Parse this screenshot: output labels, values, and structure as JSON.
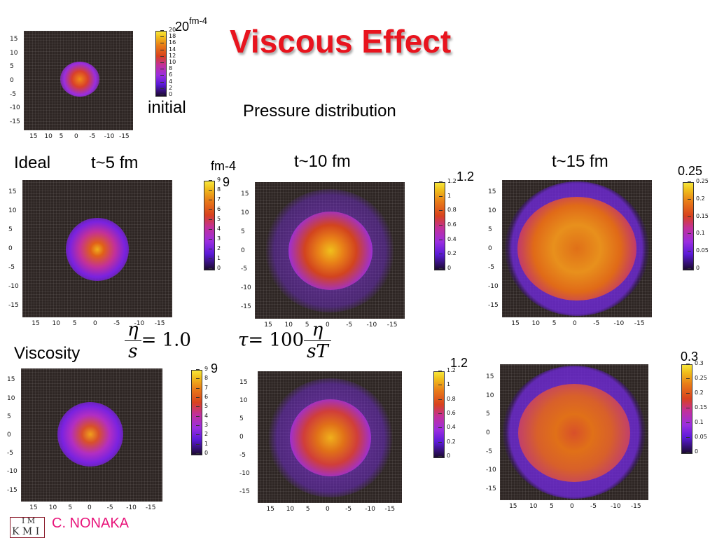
{
  "title": "Viscous Effect",
  "subtitle": "Pressure distribution",
  "labels": {
    "initial": "initial",
    "ideal": "Ideal",
    "viscosity": "Viscosity",
    "t5": "t~5 fm",
    "t10": "t~10 fm",
    "t15": "t~15 fm",
    "unit_initial_base": "20",
    "unit_initial_sup": "fm-4",
    "unit_ideal5": "fm-4",
    "max_ideal5": "9",
    "max_ideal10": "1.2",
    "max_ideal15": "0.25",
    "max_visc5": "9",
    "max_visc10": "1.2",
    "max_visc15": "0.3"
  },
  "formula": {
    "eta": "η",
    "s": "s",
    "eq1": "= 1.0",
    "tau": "τ",
    "eq2": "= 100",
    "sT": "sT"
  },
  "axis_ticks": [
    "15",
    "10",
    "5",
    "0",
    "-5",
    "-10",
    "-15"
  ],
  "colorbars": {
    "initial": [
      "20",
      "18",
      "16",
      "14",
      "12",
      "10",
      "8",
      "6",
      "4",
      "2",
      "0"
    ],
    "t5": [
      "9",
      "8",
      "7",
      "6",
      "5",
      "4",
      "3",
      "2",
      "1",
      "0"
    ],
    "t10": [
      "1.2",
      "1",
      "0.8",
      "0.6",
      "0.4",
      "0.2",
      "0"
    ],
    "t15_ideal": [
      "0.25",
      "0.2",
      "0.15",
      "0.1",
      "0.05",
      "0"
    ],
    "t15_visc": [
      "0.3",
      "0.25",
      "0.2",
      "0.15",
      "0.1",
      "0.05",
      "0"
    ]
  },
  "footer": {
    "author": "C. NONAKA",
    "logo_top": "I M",
    "logo_bottom": "K M I"
  }
}
